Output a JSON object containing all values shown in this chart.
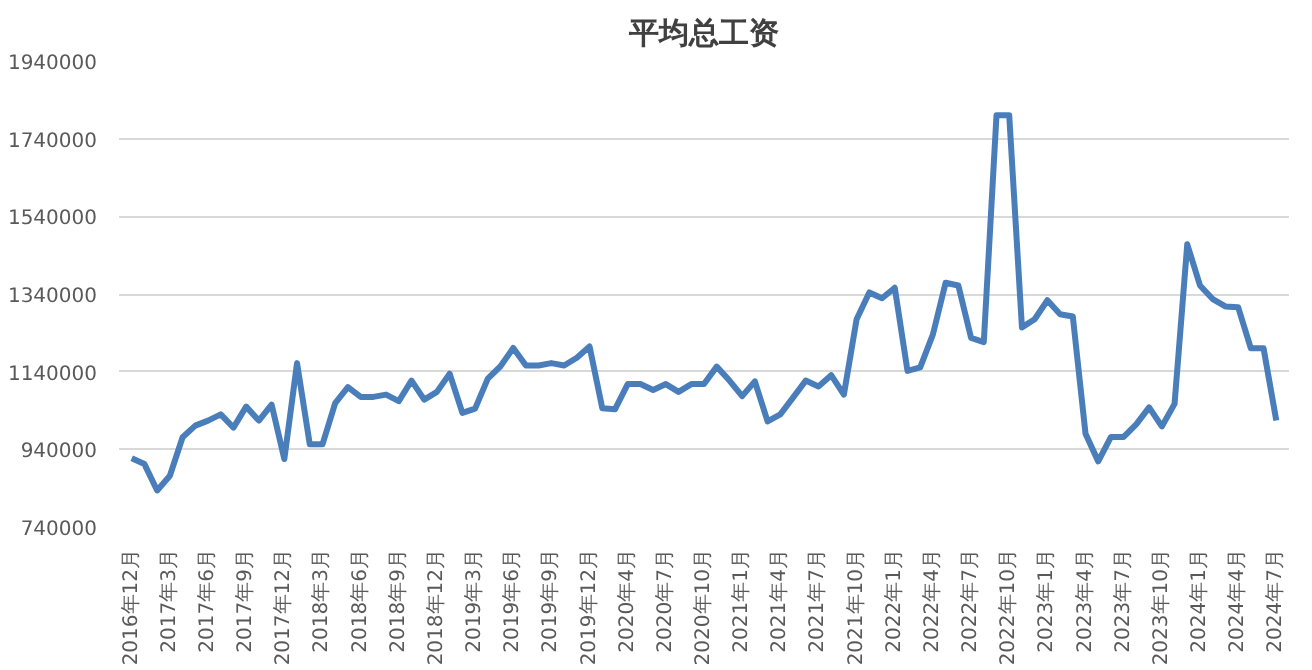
{
  "chart_data": {
    "type": "line",
    "title": "平均总工资",
    "categories": [
      "2016年12月",
      null,
      null,
      "2017年3月",
      null,
      null,
      "2017年6月",
      null,
      null,
      "2017年9月",
      null,
      null,
      "2017年12月",
      null,
      null,
      "2018年3月",
      null,
      null,
      "2018年6月",
      null,
      null,
      "2018年9月",
      null,
      null,
      "2018年12月",
      null,
      null,
      "2019年3月",
      null,
      null,
      "2019年6月",
      null,
      null,
      "2019年9月",
      null,
      null,
      "2019年12月",
      null,
      null,
      "2020年4月",
      null,
      null,
      "2020年7月",
      null,
      null,
      "2020年10月",
      null,
      null,
      "2021年1月",
      null,
      null,
      "2021年4月",
      null,
      null,
      "2021年7月",
      null,
      null,
      "2021年10月",
      null,
      null,
      "2022年1月",
      null,
      null,
      "2022年4月",
      null,
      null,
      "2022年7月",
      null,
      null,
      "2022年10月",
      null,
      null,
      "2023年1月",
      null,
      null,
      "2023年4月",
      null,
      null,
      "2023年7月",
      null,
      null,
      "2023年10月",
      null,
      null,
      "2024年1月",
      null,
      null,
      "2024年4月",
      null,
      null,
      "2024年7月"
    ],
    "series": [
      {
        "color": "#4a7ebb",
        "values": [
          917000,
          902000,
          834000,
          872000,
          971000,
          1001000,
          1014000,
          1030000,
          996000,
          1050000,
          1014000,
          1055000,
          915000,
          1162000,
          953000,
          953000,
          1059000,
          1100000,
          1075000,
          1075000,
          1081000,
          1064000,
          1117000,
          1068000,
          1088000,
          1135000,
          1034000,
          1045000,
          1122000,
          1154000,
          1201000,
          1156000,
          1156000,
          1162000,
          1156000,
          1176000,
          1205000,
          1046000,
          1043000,
          1108000,
          1108000,
          1093000,
          1108000,
          1088000,
          1108000,
          1108000,
          1153000,
          1117000,
          1077000,
          1115000,
          1012000,
          1030000,
          1073000,
          1117000,
          1102000,
          1131000,
          1081000,
          1275000,
          1344000,
          1329000,
          1356000,
          1142000,
          1151000,
          1236000,
          1369000,
          1362000,
          1227000,
          1216000,
          1800000,
          1800000,
          1254000,
          1275000,
          1324000,
          1288000,
          1282000,
          980000,
          909000,
          972000,
          972000,
          1005000,
          1048000,
          999000,
          1057000,
          1468000,
          1362000,
          1327000,
          1308000,
          1306000,
          1200000,
          1200000,
          1014000
        ]
      }
    ],
    "ylim": [
      740000,
      1940000
    ],
    "yticks": [
      740000,
      940000,
      1140000,
      1340000,
      1540000,
      1740000,
      1940000
    ],
    "grid": "y",
    "marker": "none",
    "line_style": "solid"
  }
}
